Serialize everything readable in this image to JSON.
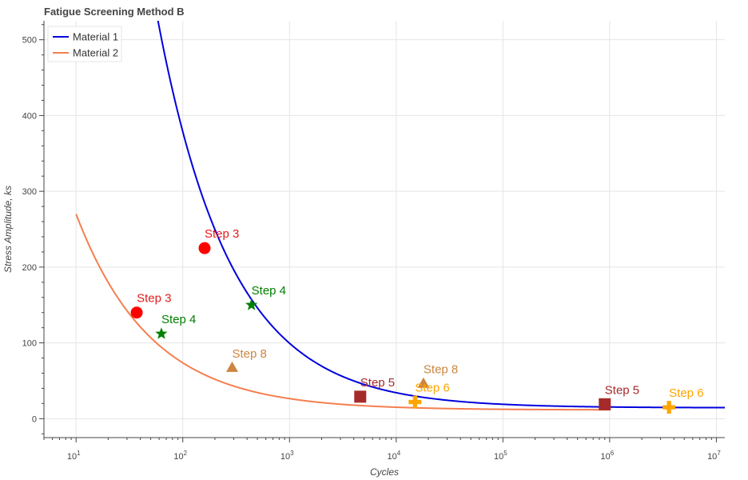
{
  "chart_data": {
    "type": "line",
    "title": "Fatigue Screening Method B",
    "xlabel": "Cycles",
    "ylabel": "Stress Amplitude, ks",
    "x_scale": "log",
    "xlim": [
      5,
      12000000
    ],
    "ylim": [
      -25,
      525
    ],
    "y_ticks": [
      0,
      100,
      200,
      300,
      400,
      500
    ],
    "x_ticks": [
      10,
      100,
      1000,
      10000,
      100000,
      1000000,
      10000000
    ],
    "x_tick_labels": [
      {
        "base": "10",
        "exp": "1"
      },
      {
        "base": "10",
        "exp": "2"
      },
      {
        "base": "10",
        "exp": "3"
      },
      {
        "base": "10",
        "exp": "4"
      },
      {
        "base": "10",
        "exp": "5"
      },
      {
        "base": "10",
        "exp": "6"
      },
      {
        "base": "10",
        "exp": "7"
      }
    ],
    "grid": true,
    "legend_position": "top-left",
    "series": [
      {
        "name": "Material 1",
        "color": "#0000dd",
        "curve": {
          "A": 6660,
          "b": -0.631,
          "floor": 14.3,
          "x_start": 10,
          "x_end": 12000000
        }
      },
      {
        "name": "Material 2",
        "color": "#f47f4f",
        "curve": {
          "A": 1075,
          "b": -0.619,
          "floor": 11.5,
          "x_start": 10,
          "x_end": 1000000
        }
      }
    ],
    "points": [
      {
        "series": "Material 1",
        "label": "Step 3",
        "x": 160,
        "y": 225,
        "marker": "circle",
        "color": "#ff0000",
        "label_color": "#e41a1c"
      },
      {
        "series": "Material 1",
        "label": "Step 4",
        "x": 440,
        "y": 150,
        "marker": "star",
        "color": "#008000",
        "label_color": "#008000"
      },
      {
        "series": "Material 1",
        "label": "Step 8",
        "x": 18000,
        "y": 46,
        "marker": "triangle",
        "color": "#cd853f",
        "label_color": "#cd853f"
      },
      {
        "series": "Material 1",
        "label": "Step 5",
        "x": 900000,
        "y": 19,
        "marker": "square",
        "color": "#a52a2a",
        "label_color": "#a52a2a"
      },
      {
        "series": "Material 1",
        "label": "Step 6",
        "x": 3600000,
        "y": 15,
        "marker": "plus",
        "color": "#ffa500",
        "label_color": "#ffa500"
      },
      {
        "series": "Material 2",
        "label": "Step 3",
        "x": 37,
        "y": 140,
        "marker": "circle",
        "color": "#ff0000",
        "label_color": "#e41a1c"
      },
      {
        "series": "Material 2",
        "label": "Step 4",
        "x": 63,
        "y": 112,
        "marker": "star",
        "color": "#008000",
        "label_color": "#008000"
      },
      {
        "series": "Material 2",
        "label": "Step 8",
        "x": 290,
        "y": 67,
        "marker": "triangle",
        "color": "#cd853f",
        "label_color": "#cd853f"
      },
      {
        "series": "Material 2",
        "label": "Step 5",
        "x": 4600,
        "y": 29,
        "marker": "square",
        "color": "#a52a2a",
        "label_color": "#a52a2a"
      },
      {
        "series": "Material 2",
        "label": "Step 6",
        "x": 15000,
        "y": 22,
        "marker": "plus",
        "color": "#ffa500",
        "label_color": "#ffa500"
      }
    ]
  }
}
